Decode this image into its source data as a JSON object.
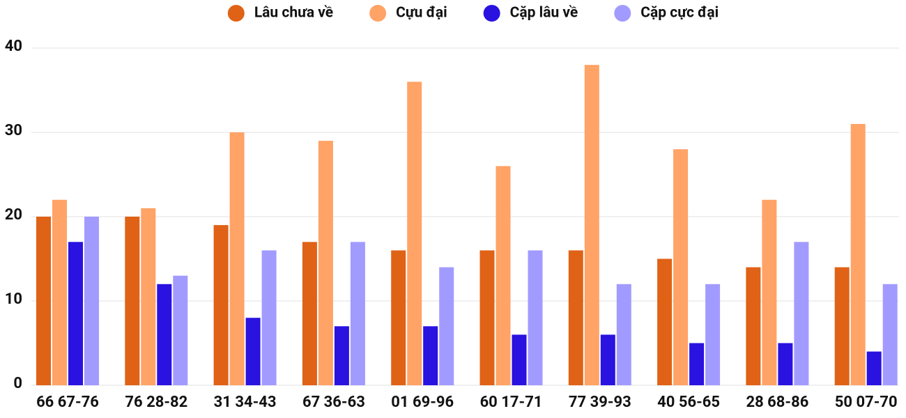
{
  "chart_data": {
    "type": "bar",
    "categories": [
      "66 67-76",
      "76 28-82",
      "31 34-43",
      "67 36-63",
      "01 69-96",
      "60 17-71",
      "77 39-93",
      "40 56-65",
      "28 68-86",
      "50 07-70"
    ],
    "series": [
      {
        "name": "Lâu chưa về",
        "color": "#e06216",
        "values": [
          20,
          20,
          19,
          17,
          16,
          16,
          16,
          15,
          14,
          14
        ]
      },
      {
        "name": "Cựu đại",
        "color": "#ffa366",
        "values": [
          22,
          21,
          30,
          29,
          36,
          26,
          38,
          28,
          22,
          31
        ]
      },
      {
        "name": "Cặp lâu về",
        "color": "#2a12e0",
        "values": [
          17,
          12,
          8,
          7,
          7,
          6,
          6,
          5,
          5,
          4
        ]
      },
      {
        "name": "Cặp cực đại",
        "color": "#a29bff",
        "values": [
          20,
          13,
          16,
          17,
          14,
          16,
          12,
          12,
          17,
          12
        ]
      }
    ],
    "ylim": [
      0,
      40
    ],
    "yticks": [
      0,
      10,
      20,
      30,
      40
    ],
    "grid": true,
    "legend": "top"
  }
}
